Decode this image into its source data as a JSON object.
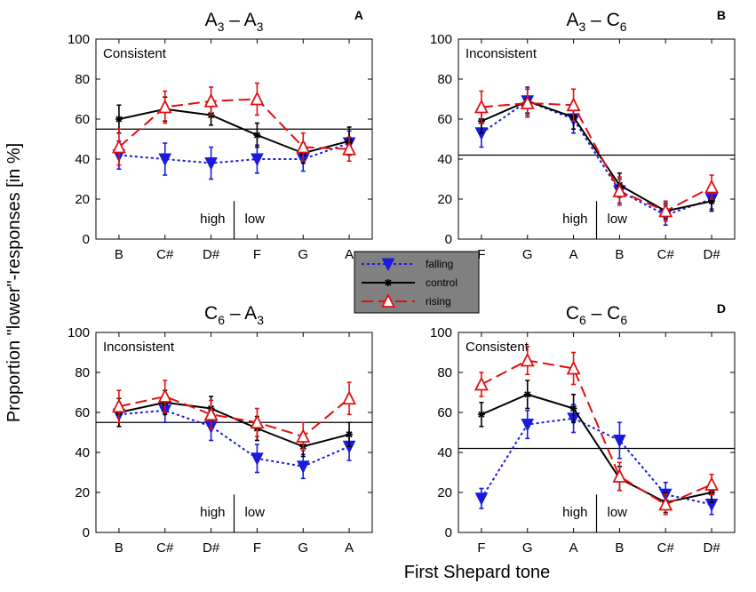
{
  "figure": {
    "ylabel": "Proportion \"lower\"-responses [in %]",
    "xlabel": "First Shepard tone",
    "legend": {
      "entries": [
        {
          "name": "falling",
          "color": "#1a1adc",
          "dash": "dotted",
          "marker": "triangle-down-filled"
        },
        {
          "name": "control",
          "color": "#000000",
          "dash": "solid",
          "marker": "star"
        },
        {
          "name": "rising",
          "color": "#e01010",
          "dash": "dashed",
          "marker": "triangle-up-open"
        }
      ]
    }
  },
  "chart_data": [
    {
      "type": "line",
      "letter": "A",
      "title": {
        "p1": "A",
        "s1": "3",
        "p2": " – A",
        "s2": "3"
      },
      "condition": "Consistent",
      "categories": [
        "B",
        "C#",
        "D#",
        "F",
        "G",
        "A"
      ],
      "ylim": [
        0,
        100
      ],
      "yticks": [
        0,
        20,
        40,
        60,
        80,
        100
      ],
      "hline": 55,
      "split_after_index": 2,
      "left_label": "high",
      "right_label": "low",
      "series": [
        {
          "name": "falling",
          "values": [
            42,
            40,
            38,
            40,
            40,
            48
          ],
          "errors": [
            7,
            8,
            8,
            7,
            6,
            6
          ]
        },
        {
          "name": "control",
          "values": [
            60,
            65,
            62,
            52,
            43,
            49
          ],
          "errors": [
            7,
            6,
            5,
            6,
            5,
            7
          ]
        },
        {
          "name": "rising",
          "values": [
            46,
            66,
            69,
            70,
            46,
            45
          ],
          "errors": [
            9,
            8,
            7,
            8,
            7,
            6
          ]
        }
      ]
    },
    {
      "type": "line",
      "letter": "B",
      "title": {
        "p1": "A",
        "s1": "3",
        "p2": " – C",
        "s2": "6"
      },
      "condition": "Inconsistent",
      "categories": [
        "F",
        "G",
        "A",
        "B",
        "C#",
        "D#"
      ],
      "ylim": [
        0,
        100
      ],
      "yticks": [
        0,
        20,
        40,
        60,
        80,
        100
      ],
      "hline": 42,
      "split_after_index": 2,
      "left_label": "high",
      "right_label": "low",
      "series": [
        {
          "name": "falling",
          "values": [
            53,
            69,
            60,
            24,
            12,
            20
          ],
          "errors": [
            7,
            7,
            7,
            6,
            5,
            5
          ]
        },
        {
          "name": "control",
          "values": [
            59,
            69,
            61,
            27,
            14,
            19
          ],
          "errors": [
            6,
            6,
            6,
            6,
            4,
            5
          ]
        },
        {
          "name": "rising",
          "values": [
            66,
            68,
            67,
            24,
            14,
            26
          ],
          "errors": [
            8,
            7,
            8,
            7,
            5,
            6
          ]
        }
      ]
    },
    {
      "type": "line",
      "letter": "C",
      "title": {
        "p1": "C",
        "s1": "6",
        "p2": " – A",
        "s2": "3"
      },
      "condition": "Inconsistent",
      "categories": [
        "B",
        "C#",
        "D#",
        "F",
        "G",
        "A"
      ],
      "ylim": [
        0,
        100
      ],
      "yticks": [
        0,
        20,
        40,
        60,
        80,
        100
      ],
      "hline": 55,
      "split_after_index": 2,
      "left_label": "high",
      "right_label": "low",
      "series": [
        {
          "name": "falling",
          "values": [
            59,
            61,
            53,
            37,
            33,
            43
          ],
          "errors": [
            6,
            6,
            7,
            7,
            6,
            7
          ]
        },
        {
          "name": "control",
          "values": [
            60,
            65,
            62,
            52,
            43,
            49
          ],
          "errors": [
            7,
            6,
            6,
            6,
            5,
            6
          ]
        },
        {
          "name": "rising",
          "values": [
            63,
            68,
            59,
            55,
            48,
            67
          ],
          "errors": [
            8,
            8,
            7,
            7,
            7,
            8
          ]
        }
      ]
    },
    {
      "type": "line",
      "letter": "D",
      "title": {
        "p1": "C",
        "s1": "6",
        "p2": " – C",
        "s2": "6"
      },
      "condition": "Consistent",
      "categories": [
        "F",
        "G",
        "A",
        "B",
        "C#",
        "D#"
      ],
      "ylim": [
        0,
        100
      ],
      "yticks": [
        0,
        20,
        40,
        60,
        80,
        100
      ],
      "hline": 42,
      "split_after_index": 2,
      "left_label": "high",
      "right_label": "low",
      "series": [
        {
          "name": "falling",
          "values": [
            17,
            54,
            57,
            46,
            19,
            14
          ],
          "errors": [
            5,
            7,
            7,
            9,
            6,
            5
          ]
        },
        {
          "name": "control",
          "values": [
            59,
            69,
            62,
            27,
            15,
            20
          ],
          "errors": [
            6,
            7,
            7,
            6,
            5,
            5
          ]
        },
        {
          "name": "rising",
          "values": [
            74,
            86,
            82,
            28,
            14,
            24
          ],
          "errors": [
            6,
            7,
            8,
            7,
            5,
            5
          ]
        }
      ]
    }
  ]
}
